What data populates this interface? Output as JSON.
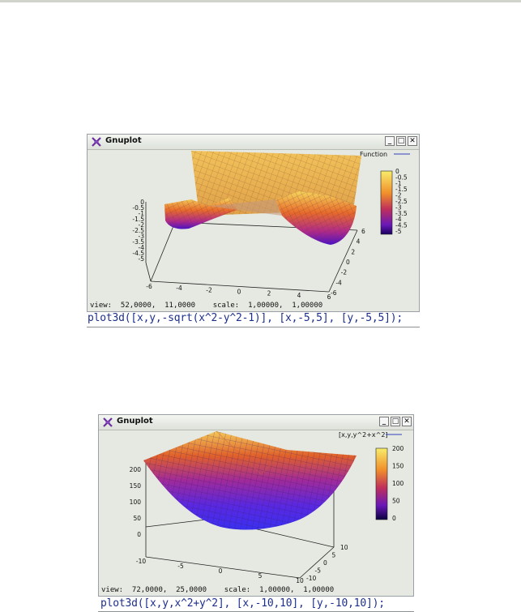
{
  "window1": {
    "title": "Gnuplot",
    "min_glyph": "_",
    "max_glyph": "□",
    "close_glyph": "✕",
    "legend_label": "Function",
    "colorbar_ticks": [
      "0",
      "-0.5",
      "-1",
      "-1.5",
      "-2",
      "-2.5",
      "-3",
      "-3.5",
      "-4",
      "-4.5",
      "-5"
    ],
    "z_ticks": [
      "0",
      "-0.5",
      "-1",
      "-1.5",
      "-2",
      "-2.5",
      "-3",
      "-3.5",
      "-4",
      "-4.5",
      "-5"
    ],
    "x_ticks": [
      "-6",
      "-4",
      "-2",
      "0",
      "2",
      "4",
      "6"
    ],
    "y_ticks": [
      "6",
      "4",
      "2",
      "0",
      "-2",
      "-4",
      "-6"
    ],
    "status": "view:  52,0000,  11,0000    scale:  1,00000,  1,00000",
    "command": "plot3d([x,y,-sqrt(x^2-y^2-1)], [x,-5,5], [y,-5,5]);"
  },
  "window2": {
    "title": "Gnuplot",
    "min_glyph": "_",
    "max_glyph": "□",
    "close_glyph": "✕",
    "legend_label": "[x,y,y^2+x^2]",
    "colorbar_ticks": [
      "200",
      "150",
      "100",
      "50",
      "0"
    ],
    "z_ticks": [
      "200",
      "150",
      "100",
      "50",
      "0"
    ],
    "x_ticks": [
      "-10",
      "-5",
      "0",
      "5",
      "10"
    ],
    "y_ticks": [
      "10",
      "5",
      "0",
      "-5",
      "-10"
    ],
    "status": "view:  72,0000,  25,0000    scale:  1,00000,  1,00000",
    "command": "plot3d([x,y,x^2+y^2], [x,-10,10], [y,-10,10]);"
  },
  "colors": {
    "surface_top": "#f6e86a",
    "surface_mid": "#e0502a",
    "surface_bottom": "#3b0aa0",
    "command_text": "#1c2f8c",
    "window_bg": "#e6e9e2"
  }
}
